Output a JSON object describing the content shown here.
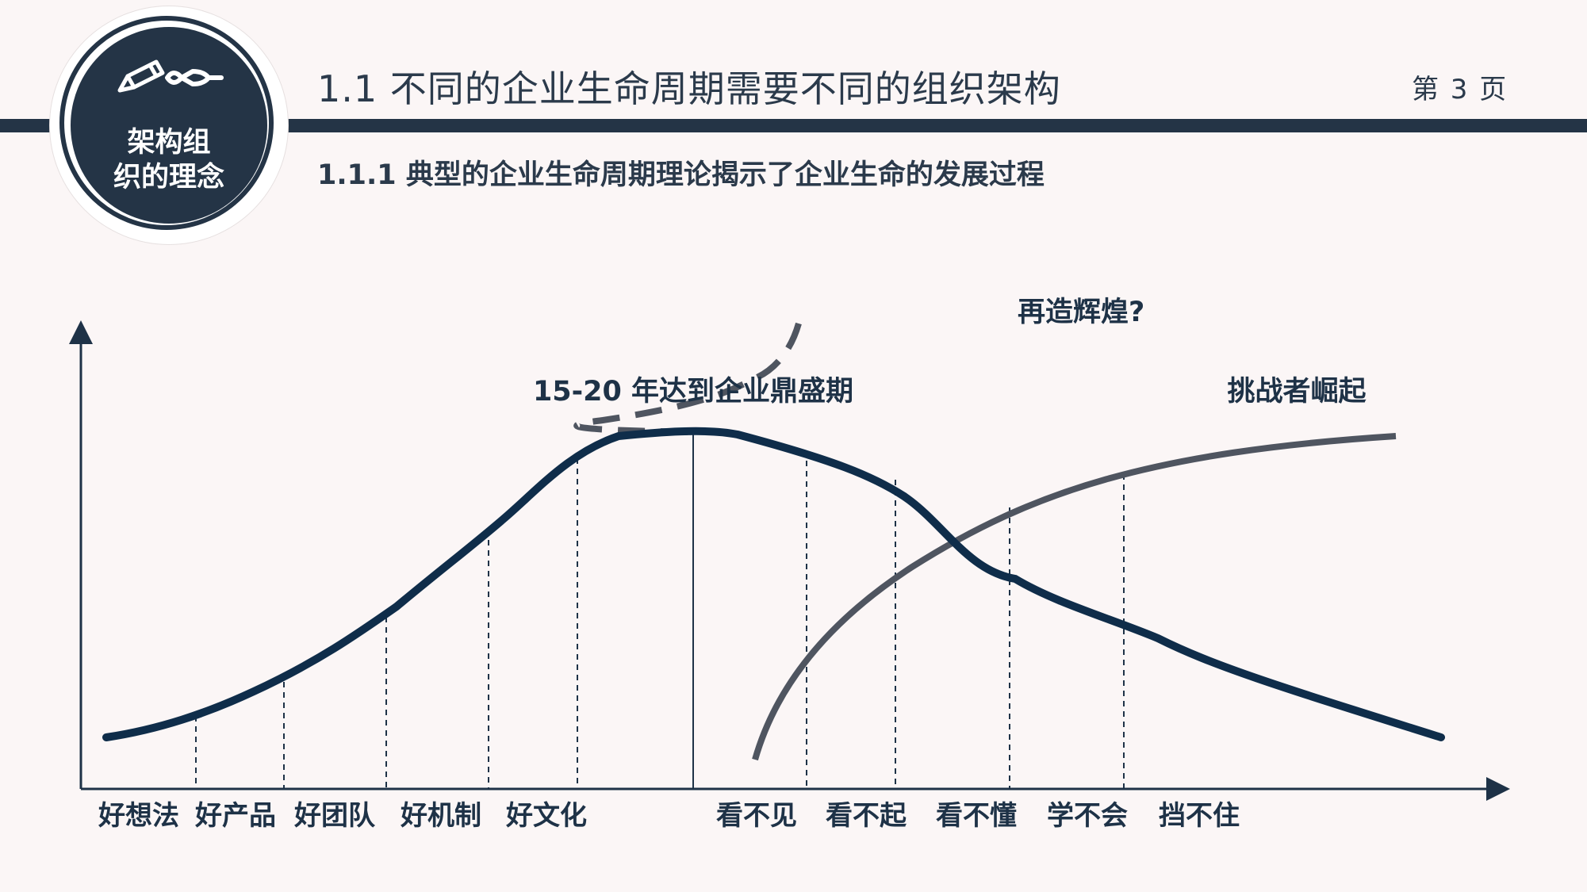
{
  "badge": {
    "line1": "架构组",
    "line2": "织的理念",
    "icons": [
      "pencil-icon",
      "fountain-pen-icon"
    ]
  },
  "header": {
    "title": "1.1  不同的企业生命周期需要不同的组织架构",
    "page_number": "第 3 页"
  },
  "section_heading": "1.1.1  典型的企业生命周期理论揭示了企业生命的发展过程",
  "colors": {
    "primary": "#243446",
    "main_curve": "#0f2d4a",
    "challenger_curve": "#4f5560",
    "background": "#fbf6f6"
  },
  "diagram": {
    "peak_label": "15-20 年达到企业鼎盛期",
    "rebirth_label": "再造辉煌?",
    "challenger_label": "挑战者崛起",
    "rise_stages": [
      "好想法",
      "好产品",
      "好团队",
      "好机制",
      "好文化"
    ],
    "decline_stages": [
      "看不见",
      "看不起",
      "看不懂",
      "学不会",
      "挡不住"
    ]
  }
}
